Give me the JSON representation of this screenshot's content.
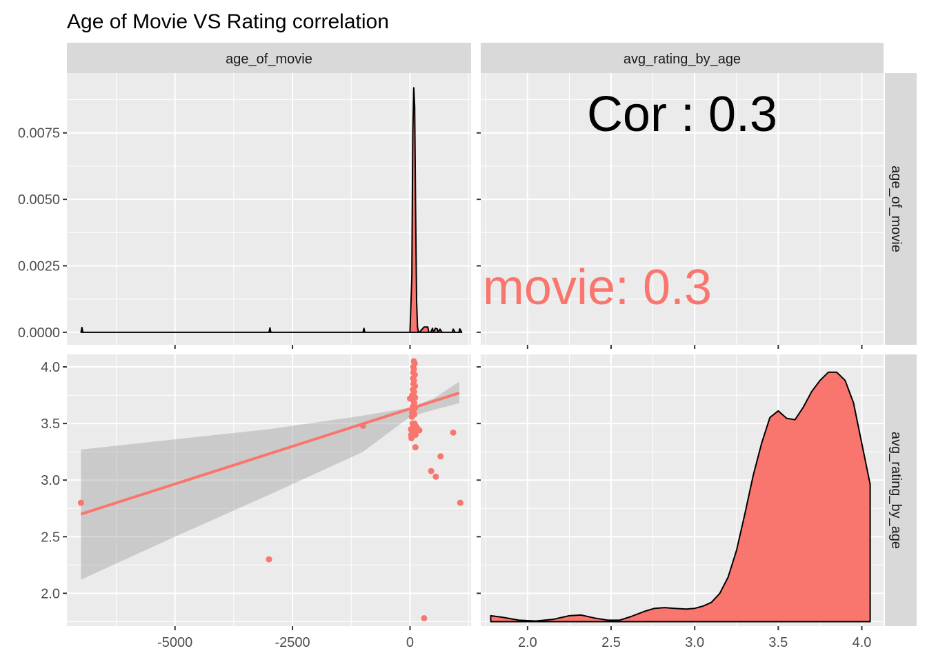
{
  "chart_data": {
    "type": "scatter",
    "title": "Age of Movie VS Rating correlation",
    "variables": [
      "age_of_movie",
      "avg_rating_by_age"
    ],
    "fill_color": "#f8766d",
    "panel_bg": "#ebebeb",
    "strip_bg": "#d9d9d9",
    "x_axes": {
      "age_of_movie": {
        "range": [
          -7300,
          1300
        ],
        "ticks": [
          -5000,
          -2500,
          0
        ],
        "tick_labels": [
          "-5000",
          "-2500",
          "0"
        ]
      },
      "avg_rating_by_age": {
        "range": [
          1.72,
          4.13
        ],
        "ticks": [
          2.0,
          2.5,
          3.0,
          3.5,
          4.0
        ],
        "tick_labels": [
          "2.0",
          "2.5",
          "3.0",
          "3.5",
          "4.0"
        ]
      }
    },
    "y_axes": {
      "density_age": {
        "range": [
          -0.00047,
          0.00975
        ],
        "ticks": [
          0,
          0.0025,
          0.005,
          0.0075
        ],
        "tick_labels": [
          "0.0000",
          "0.0025",
          "0.0050",
          "0.0075"
        ]
      },
      "avg_rating_by_age": {
        "range": [
          1.71,
          4.11
        ],
        "ticks": [
          2.0,
          2.5,
          3.0,
          3.5,
          4.0
        ],
        "tick_labels": [
          "2.0",
          "2.5",
          "3.0",
          "3.5",
          "4.0"
        ]
      }
    },
    "panels": {
      "age_density": {
        "type": "area",
        "x": [
          -7000,
          -6980,
          -6960,
          -6940,
          -3000,
          -2980,
          -2960,
          -2940,
          -1000,
          -980,
          -960,
          -940,
          0,
          40,
          60,
          80,
          100,
          120,
          140,
          160,
          180,
          200,
          300,
          380,
          400,
          440,
          480,
          500,
          540,
          580,
          600,
          640,
          680,
          900,
          920,
          960,
          1040,
          1060,
          1100
        ],
        "y": [
          0,
          0.00018,
          0,
          0,
          0,
          0.00017,
          0,
          0,
          0,
          0.00015,
          0,
          0,
          0,
          0.0021,
          0.0075,
          0.0092,
          0.0085,
          0.0045,
          0.0012,
          0.0002,
          0,
          0,
          0.0002,
          0.0002,
          0,
          0,
          0.00015,
          0,
          0.00015,
          0.00013,
          0,
          0.00012,
          0,
          0,
          0.00012,
          0,
          0,
          0.00013,
          0
        ]
      },
      "correlation": {
        "label": "Cor : 0.3",
        "group_label": "movie: 0.3"
      },
      "scatter": {
        "points": [
          {
            "x": -7000,
            "y": 2.8
          },
          {
            "x": -3000,
            "y": 2.3
          },
          {
            "x": -1000,
            "y": 3.48
          },
          {
            "x": 0,
            "y": 3.72
          },
          {
            "x": 20,
            "y": 3.45
          },
          {
            "x": 25,
            "y": 3.4
          },
          {
            "x": 30,
            "y": 3.37
          },
          {
            "x": 40,
            "y": 3.56
          },
          {
            "x": 45,
            "y": 3.6
          },
          {
            "x": 50,
            "y": 3.75
          },
          {
            "x": 55,
            "y": 3.5
          },
          {
            "x": 60,
            "y": 3.65
          },
          {
            "x": 62,
            "y": 3.8
          },
          {
            "x": 65,
            "y": 3.9
          },
          {
            "x": 68,
            "y": 3.95
          },
          {
            "x": 70,
            "y": 4.0
          },
          {
            "x": 72,
            "y": 3.85
          },
          {
            "x": 75,
            "y": 3.7
          },
          {
            "x": 78,
            "y": 3.62
          },
          {
            "x": 80,
            "y": 4.05
          },
          {
            "x": 82,
            "y": 3.98
          },
          {
            "x": 85,
            "y": 3.88
          },
          {
            "x": 88,
            "y": 3.78
          },
          {
            "x": 90,
            "y": 3.68
          },
          {
            "x": 92,
            "y": 3.58
          },
          {
            "x": 95,
            "y": 3.5
          },
          {
            "x": 98,
            "y": 3.44
          },
          {
            "x": 100,
            "y": 4.03
          },
          {
            "x": 102,
            "y": 3.93
          },
          {
            "x": 105,
            "y": 3.83
          },
          {
            "x": 108,
            "y": 3.73
          },
          {
            "x": 110,
            "y": 3.64
          },
          {
            "x": 115,
            "y": 3.29
          },
          {
            "x": 118,
            "y": 3.4
          },
          {
            "x": 120,
            "y": 3.48
          },
          {
            "x": 125,
            "y": 3.47
          },
          {
            "x": 130,
            "y": 3.45
          },
          {
            "x": 150,
            "y": 3.46
          },
          {
            "x": 200,
            "y": 3.44
          },
          {
            "x": 300,
            "y": 1.78
          },
          {
            "x": 450,
            "y": 3.08
          },
          {
            "x": 550,
            "y": 3.03
          },
          {
            "x": 650,
            "y": 3.21
          },
          {
            "x": 920,
            "y": 3.42
          },
          {
            "x": 1070,
            "y": 2.8
          }
        ],
        "fit_line": {
          "x": [
            -7000,
            1050
          ],
          "y": [
            2.7,
            3.77
          ]
        },
        "confidence_band": {
          "x": [
            -7000,
            -5000,
            -3000,
            -1000,
            0,
            500,
            1050
          ],
          "upper": [
            3.27,
            3.36,
            3.45,
            3.57,
            3.64,
            3.72,
            3.87
          ],
          "lower": [
            2.12,
            2.5,
            2.87,
            3.25,
            3.56,
            3.62,
            3.68
          ]
        }
      },
      "rating_density": {
        "type": "area",
        "x": [
          1.78,
          1.85,
          1.95,
          2.05,
          2.15,
          2.25,
          2.32,
          2.4,
          2.48,
          2.55,
          2.62,
          2.7,
          2.76,
          2.82,
          2.88,
          2.95,
          3.0,
          3.05,
          3.1,
          3.15,
          3.2,
          3.25,
          3.3,
          3.35,
          3.4,
          3.45,
          3.5,
          3.55,
          3.6,
          3.65,
          3.7,
          3.75,
          3.8,
          3.85,
          3.9,
          3.95,
          4.0,
          4.05,
          4.05
        ],
        "y": [
          0.08,
          0.06,
          0.02,
          0.01,
          0.03,
          0.08,
          0.09,
          0.05,
          0.02,
          0.02,
          0.07,
          0.14,
          0.18,
          0.19,
          0.18,
          0.17,
          0.18,
          0.21,
          0.26,
          0.38,
          0.6,
          0.96,
          1.45,
          1.97,
          2.4,
          2.75,
          2.84,
          2.74,
          2.72,
          2.89,
          3.1,
          3.25,
          3.36,
          3.36,
          3.25,
          2.95,
          2.4,
          1.85,
          0
        ],
        "ylim": [
          0,
          3.5
        ]
      }
    }
  }
}
